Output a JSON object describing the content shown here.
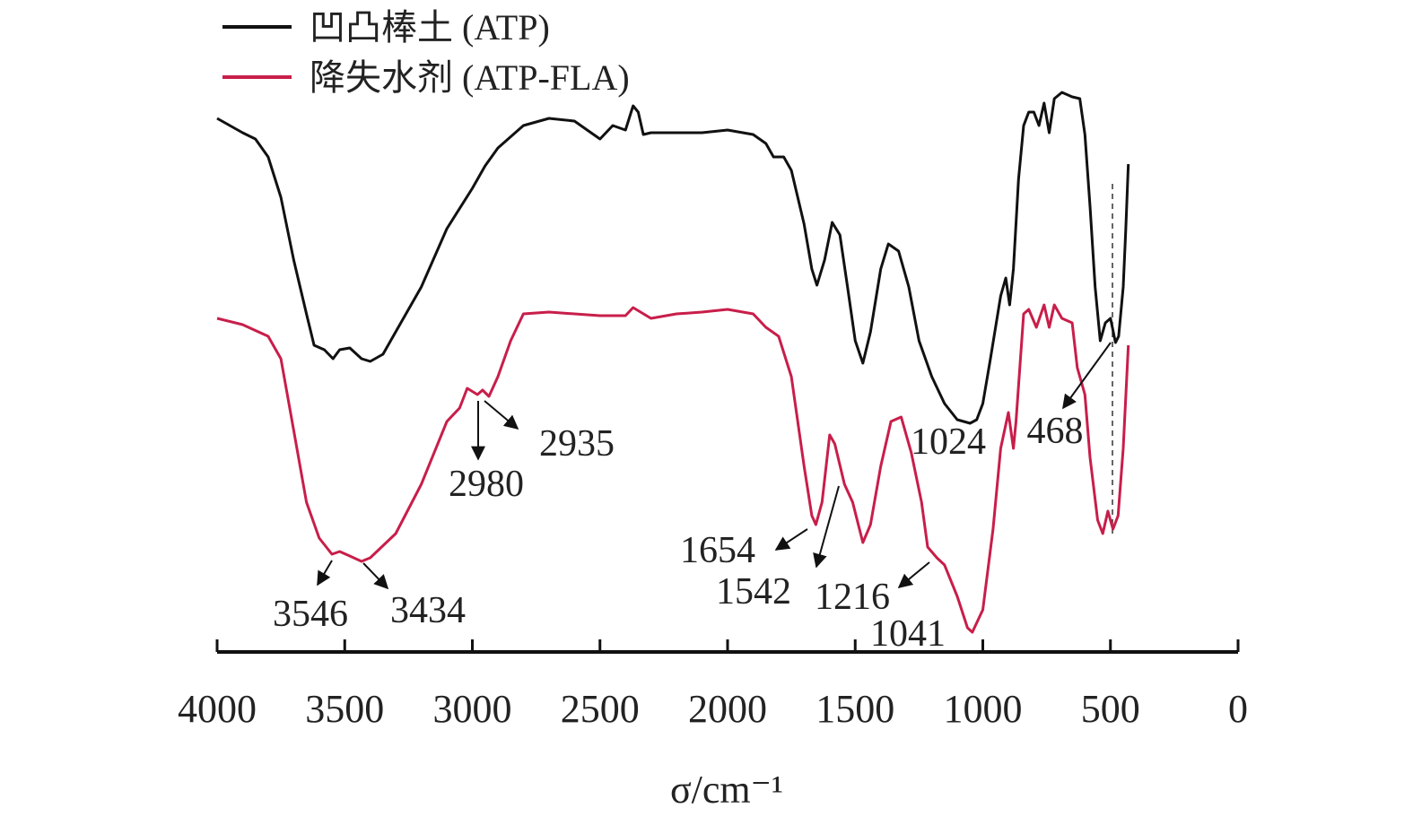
{
  "chart_data": {
    "type": "line",
    "xlabel": "σ/cm⁻¹",
    "xlim": [
      4000,
      0
    ],
    "xticks": [
      4000,
      3500,
      3000,
      2500,
      2000,
      1500,
      1000,
      500,
      0
    ],
    "ylim": [
      0,
      700
    ],
    "legend": "top-left",
    "series": [
      {
        "name": "凹凸棒土 (ATP)",
        "color": "#111111",
        "x": [
          4000,
          3950,
          3900,
          3850,
          3800,
          3750,
          3700,
          3650,
          3620,
          3580,
          3546,
          3520,
          3480,
          3434,
          3400,
          3350,
          3300,
          3200,
          3100,
          3000,
          2950,
          2900,
          2800,
          2700,
          2600,
          2550,
          2500,
          2450,
          2400,
          2370,
          2350,
          2330,
          2300,
          2200,
          2100,
          2000,
          1900,
          1850,
          1820,
          1780,
          1750,
          1700,
          1670,
          1650,
          1620,
          1590,
          1560,
          1530,
          1500,
          1470,
          1440,
          1400,
          1370,
          1330,
          1290,
          1250,
          1200,
          1150,
          1100,
          1050,
          1024,
          1000,
          970,
          930,
          910,
          895,
          880,
          860,
          840,
          820,
          800,
          780,
          760,
          740,
          720,
          690,
          650,
          620,
          600,
          580,
          560,
          540,
          520,
          500,
          480,
          468,
          450,
          440,
          430
        ],
        "values": [
          595,
          587,
          579,
          572,
          552,
          507,
          437,
          377,
          342,
          337,
          327,
          337,
          339,
          327,
          324,
          332,
          357,
          407,
          472,
          517,
          542,
          562,
          587,
          595,
          592,
          582,
          572,
          587,
          582,
          609,
          602,
          577,
          579,
          579,
          579,
          582,
          577,
          567,
          552,
          552,
          537,
          477,
          427,
          409,
          437,
          479,
          465,
          407,
          347,
          322,
          357,
          427,
          455,
          447,
          407,
          347,
          307,
          277,
          259,
          255,
          259,
          277,
          327,
          397,
          417,
          387,
          427,
          527,
          587,
          602,
          602,
          587,
          612,
          579,
          617,
          624,
          619,
          617,
          577,
          497,
          407,
          347,
          367,
          372,
          345,
          352,
          407,
          470,
          544
        ]
      },
      {
        "name": "降失水剂 (ATP-FLA)",
        "color": "#c81e4a",
        "x": [
          4000,
          3900,
          3800,
          3750,
          3700,
          3650,
          3600,
          3550,
          3520,
          3480,
          3434,
          3400,
          3300,
          3200,
          3100,
          3050,
          3020,
          2980,
          2960,
          2935,
          2900,
          2850,
          2800,
          2700,
          2500,
          2400,
          2370,
          2300,
          2200,
          2100,
          2000,
          1900,
          1850,
          1800,
          1750,
          1700,
          1670,
          1654,
          1630,
          1600,
          1580,
          1542,
          1510,
          1470,
          1440,
          1400,
          1360,
          1320,
          1280,
          1240,
          1216,
          1180,
          1150,
          1100,
          1060,
          1041,
          1000,
          960,
          930,
          900,
          880,
          870,
          840,
          820,
          790,
          760,
          740,
          720,
          690,
          650,
          630,
          600,
          580,
          550,
          530,
          510,
          490,
          470,
          450,
          430
        ],
        "values": [
          372,
          365,
          352,
          327,
          247,
          167,
          127,
          109,
          112,
          107,
          101,
          105,
          132,
          187,
          257,
          272,
          294,
          287,
          292,
          285,
          307,
          347,
          377,
          379,
          375,
          375,
          384,
          372,
          377,
          379,
          382,
          377,
          362,
          352,
          307,
          207,
          152,
          142,
          167,
          242,
          232,
          187,
          167,
          122,
          142,
          207,
          257,
          262,
          222,
          167,
          117,
          105,
          97,
          62,
          27,
          22,
          47,
          137,
          227,
          267,
          227,
          257,
          377,
          382,
          362,
          387,
          362,
          387,
          372,
          367,
          317,
          287,
          217,
          147,
          132,
          157,
          137,
          152,
          227,
          342
        ]
      }
    ],
    "annotations": [
      "3546",
      "3434",
      "2980",
      "2935",
      "1654",
      "1542",
      "1216",
      "1041",
      "1024",
      "468"
    ]
  }
}
